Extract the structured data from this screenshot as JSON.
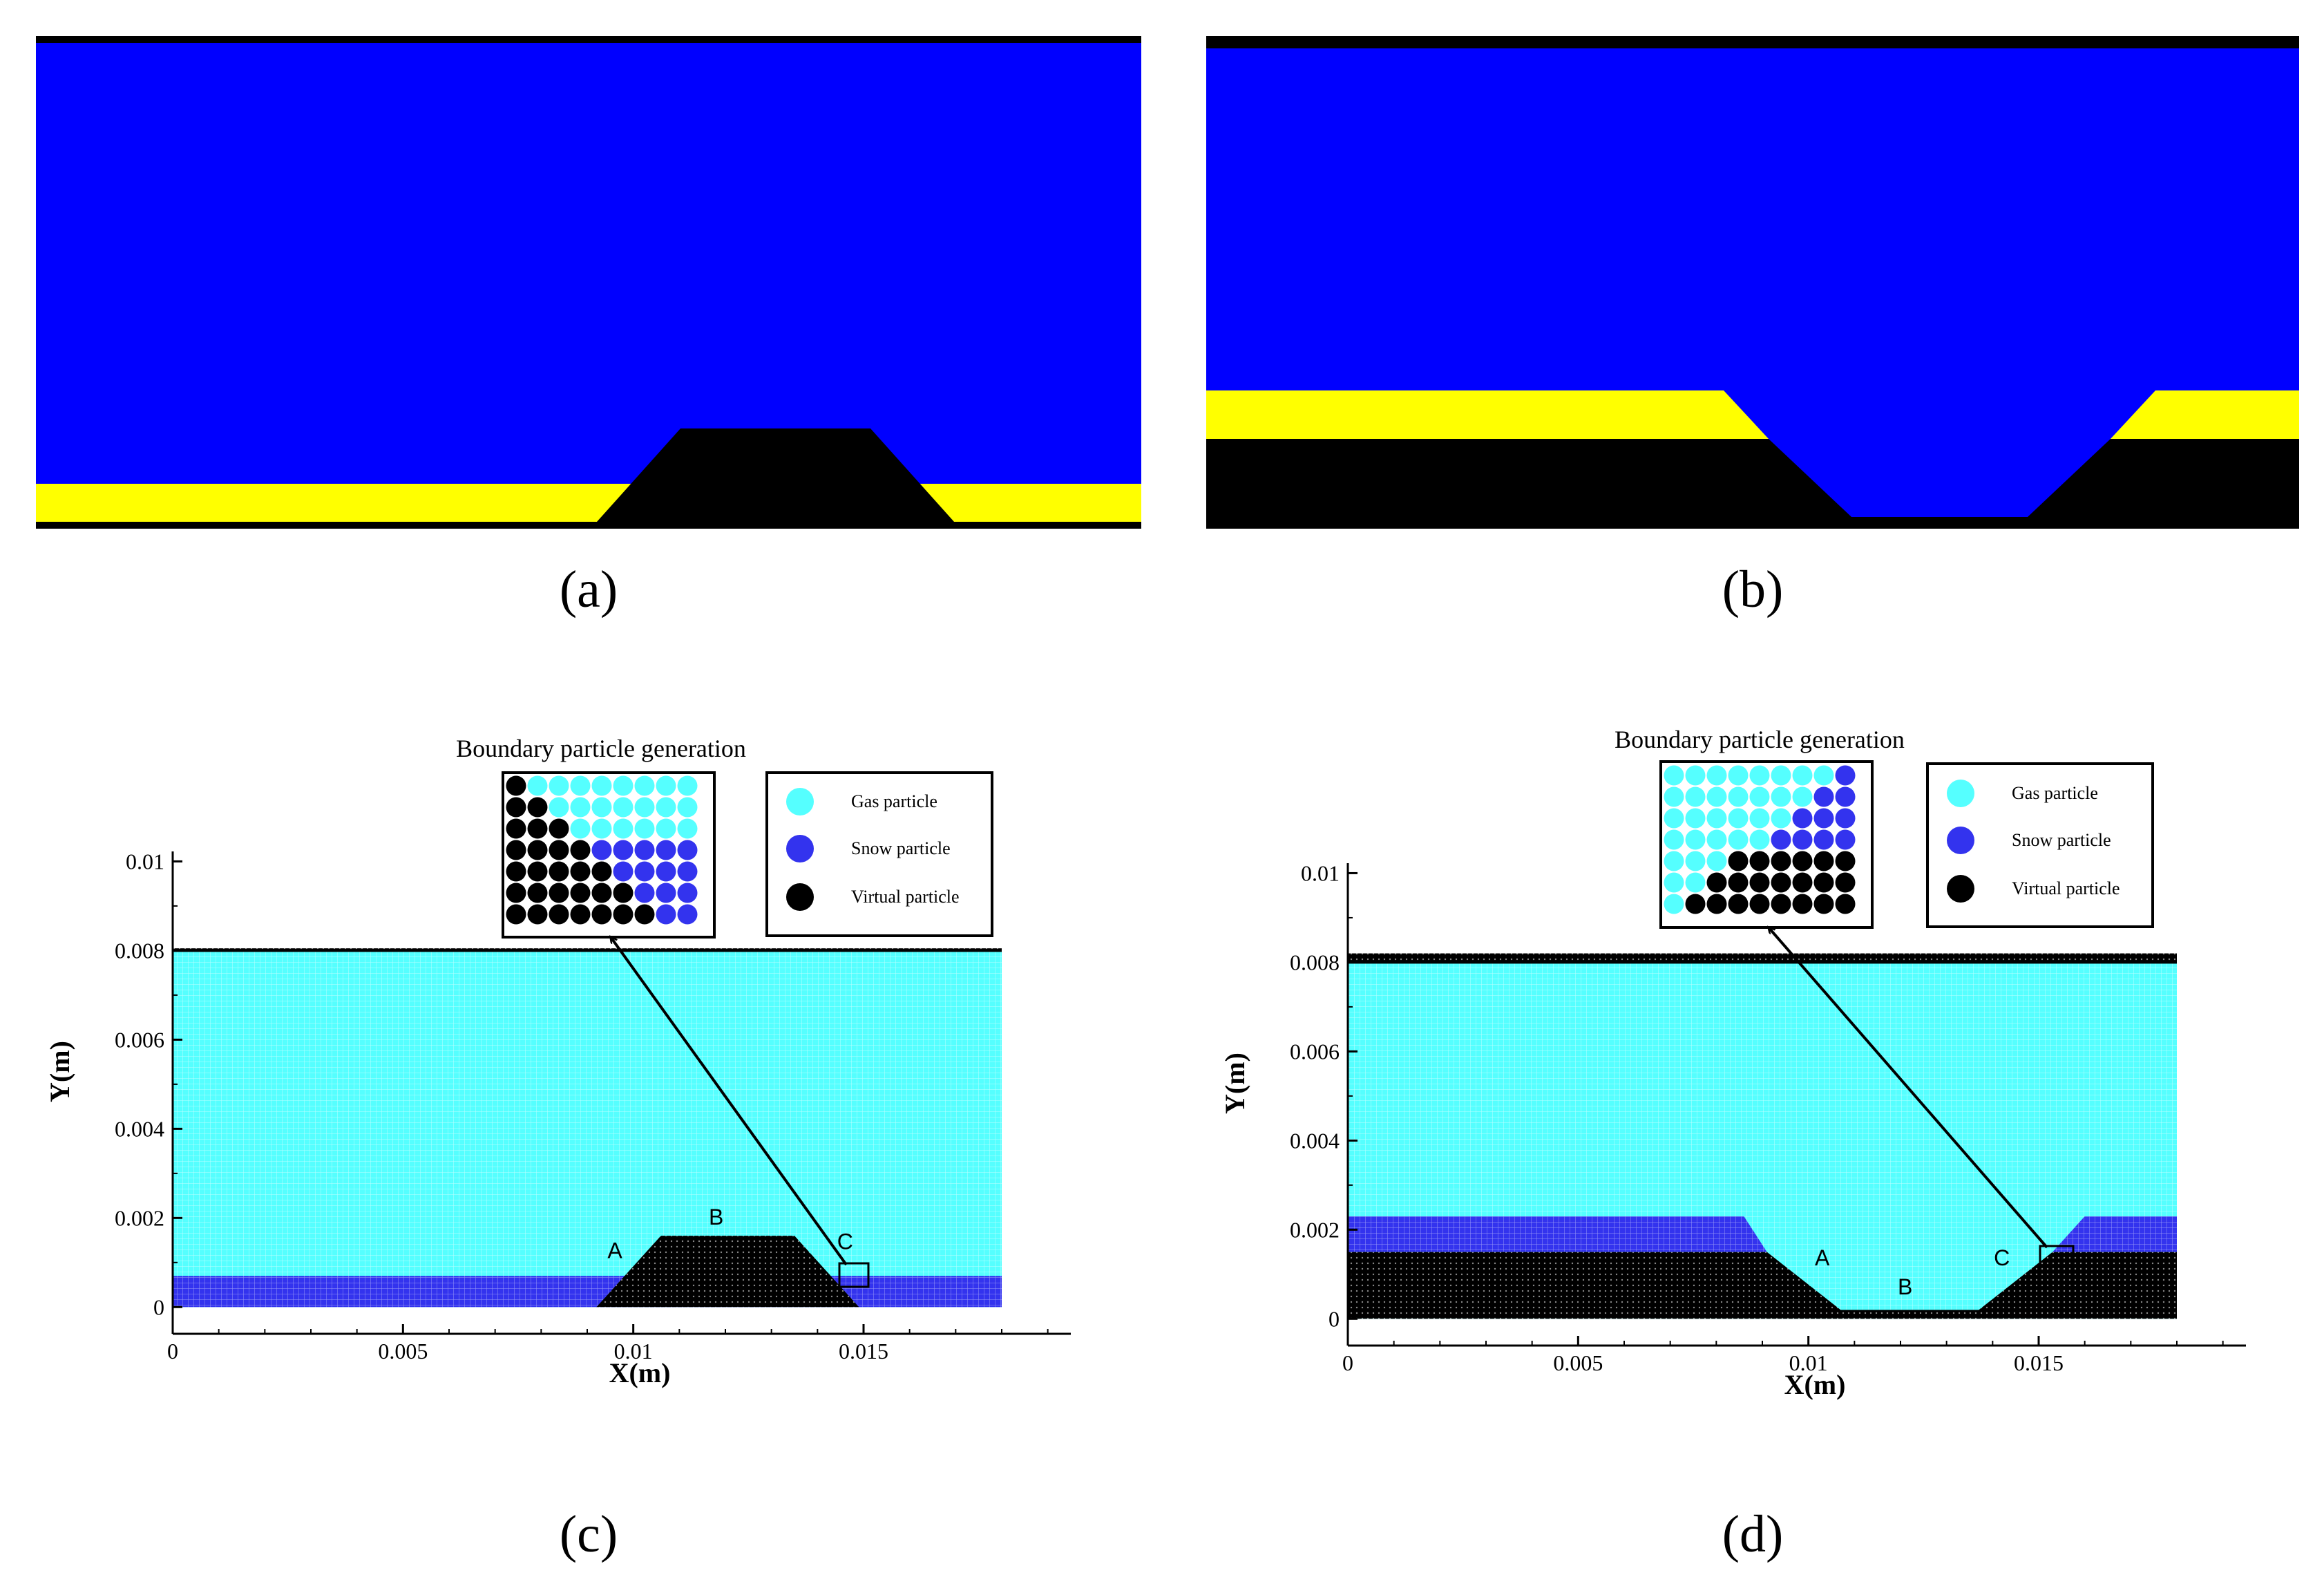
{
  "colors": {
    "sim_gas": "#0000ff",
    "sim_snow": "#ffff00",
    "sim_solid": "#000000",
    "gas_particle": "#55ffff",
    "snow_particle": "#3333ee",
    "virtual_particle": "#000000"
  },
  "panels": {
    "a": {
      "label": "(a)"
    },
    "b": {
      "label": "(b)"
    },
    "c": {
      "label": "(c)",
      "inset_title": "Boundary particle generation",
      "points": {
        "A": "A",
        "B": "B",
        "C": "C"
      },
      "legend": {
        "gas": "Gas particle",
        "snow": "Snow particle",
        "virtual": "Virtual particle"
      },
      "inset_grid": [
        "VGGGGGGGG",
        "VVGGGGGGG",
        "VVVGGGGGG",
        "VVVVSSSSS",
        "VVVVVSSSS",
        "VVVVVVSSS",
        "VVVVVVVSS"
      ]
    },
    "d": {
      "label": "(d)",
      "inset_title": "Boundary particle generation",
      "points": {
        "A": "A",
        "B": "B",
        "C": "C"
      },
      "legend": {
        "gas": "Gas particle",
        "snow": "Snow particle",
        "virtual": "Virtual particle"
      },
      "inset_grid": [
        "GGGGGGGGS",
        "GGGGGGGSS",
        "GGGGGGSSS",
        "GGGGGSSSS",
        "GGGVVVVVV",
        "GGVVVVVVV",
        "GVVVVVVVV"
      ]
    }
  },
  "chart_data": [
    {
      "type": "scatter",
      "panel": "c",
      "xlabel": "X(m)",
      "ylabel": "Y(m)",
      "xlim": [
        0,
        0.0195
      ],
      "ylim": [
        -0.0006,
        0.0101
      ],
      "x_ticks": [
        "0",
        "0.005",
        "0.01",
        "0.015"
      ],
      "y_ticks": [
        "0",
        "0.002",
        "0.004",
        "0.006",
        "0.008",
        "0.01"
      ],
      "regions": {
        "domain": {
          "x": [
            0,
            0.018
          ],
          "y": [
            0,
            0.008
          ]
        },
        "snow_top": 0.0007,
        "bump": {
          "x": [
            0.0092,
            0.0106,
            0.0135,
            0.0149
          ],
          "top": 0.0016
        },
        "lid_top": 0.00805,
        "points": {
          "A": [
            0.0096,
            0.0011
          ],
          "B": [
            0.0118,
            0.00185
          ],
          "C": [
            0.0146,
            0.0013
          ]
        }
      }
    },
    {
      "type": "scatter",
      "panel": "d",
      "xlabel": "X(m)",
      "ylabel": "Y(m)",
      "xlim": [
        0,
        0.0195
      ],
      "ylim": [
        -0.0006,
        0.0101
      ],
      "x_ticks": [
        "0",
        "0.005",
        "0.01",
        "0.015"
      ],
      "y_ticks": [
        "0",
        "0.002",
        "0.004",
        "0.006",
        "0.008",
        "0.01"
      ],
      "regions": {
        "domain": {
          "x": [
            0,
            0.018
          ],
          "y": [
            0,
            0.008
          ]
        },
        "virtual_top": 0.0015,
        "snow_top": 0.0023,
        "snow_break": [
          0.0086,
          0.016
        ],
        "trough": {
          "x": [
            0.0091,
            0.0107,
            0.0137,
            0.0153
          ],
          "bottom": 0.0002
        },
        "lid_top": 0.0082,
        "points": {
          "A": [
            0.0103,
            0.0012
          ],
          "B": [
            0.0121,
            0.00055
          ],
          "C": [
            0.0142,
            0.0012
          ]
        }
      }
    }
  ]
}
